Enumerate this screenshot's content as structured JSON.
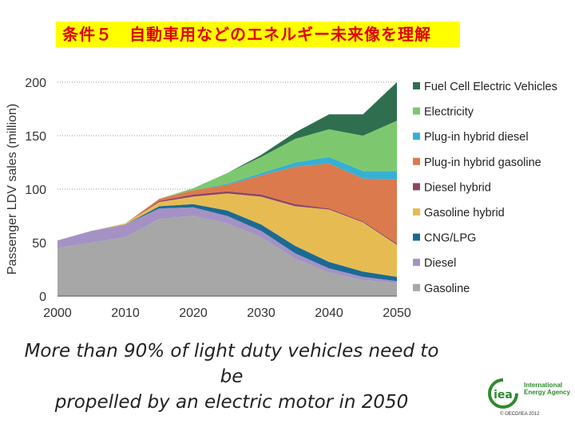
{
  "header": {
    "title": "条件５　自動車用などのエネルギー未来像を理解"
  },
  "caption": {
    "line1": "More than 90% of light duty vehicles need to be",
    "line2": "propelled by an electric motor in 2050"
  },
  "logo": {
    "mark": "iea",
    "org": "International Energy Agency",
    "copyright": "© OECD/IEA 2012"
  },
  "chart_data": {
    "type": "area",
    "stacked": true,
    "title": "",
    "xlabel": "",
    "ylabel": "Passenger LDV sales (million)",
    "x": [
      2000,
      2005,
      2010,
      2015,
      2020,
      2025,
      2030,
      2035,
      2040,
      2045,
      2050
    ],
    "xticks": [
      "2000",
      "2010",
      "2020",
      "2030",
      "2040",
      "2050"
    ],
    "yticks": [
      "0",
      "50",
      "100",
      "150",
      "200"
    ],
    "xlim": [
      2000,
      2050
    ],
    "ylim": [
      0,
      200
    ],
    "legend_position": "right",
    "series": [
      {
        "name": "Gasoline",
        "color": "#a7a7a7",
        "values": [
          45,
          50,
          55,
          72,
          75,
          68,
          55,
          35,
          22,
          15,
          12
        ]
      },
      {
        "name": "Diesel",
        "color": "#a492c4",
        "values": [
          7,
          11,
          12,
          10,
          8,
          7,
          6,
          5,
          4,
          3,
          2
        ]
      },
      {
        "name": "CNG/LPG",
        "color": "#1b6a94",
        "values": [
          0,
          0,
          0,
          2,
          3,
          5,
          6,
          7,
          6,
          5,
          4
        ]
      },
      {
        "name": "Gasoline hybrid",
        "color": "#e6bc52",
        "values": [
          0,
          0,
          1,
          4,
          7,
          16,
          26,
          37,
          49,
          46,
          30
        ]
      },
      {
        "name": "Diesel hybrid",
        "color": "#8c4467",
        "values": [
          0,
          0,
          0,
          1,
          2,
          2,
          2,
          2,
          1,
          1,
          1
        ]
      },
      {
        "name": "Plug-in hybrid gasoline",
        "color": "#db7a4c",
        "values": [
          0,
          0,
          0,
          2,
          4,
          6,
          18,
          35,
          42,
          40,
          60
        ]
      },
      {
        "name": "Plug-in hybrid diesel",
        "color": "#35b0d4",
        "values": [
          0,
          0,
          0,
          0,
          0,
          1,
          2,
          4,
          6,
          7,
          8
        ]
      },
      {
        "name": "Electricity",
        "color": "#7dc86f",
        "values": [
          0,
          0,
          0,
          0,
          2,
          10,
          15,
          22,
          26,
          33,
          47
        ]
      },
      {
        "name": "Fuel Cell Electric Vehicles",
        "color": "#2f6f4f",
        "values": [
          0,
          0,
          0,
          0,
          0,
          0,
          2,
          6,
          14,
          20,
          36
        ]
      }
    ]
  }
}
